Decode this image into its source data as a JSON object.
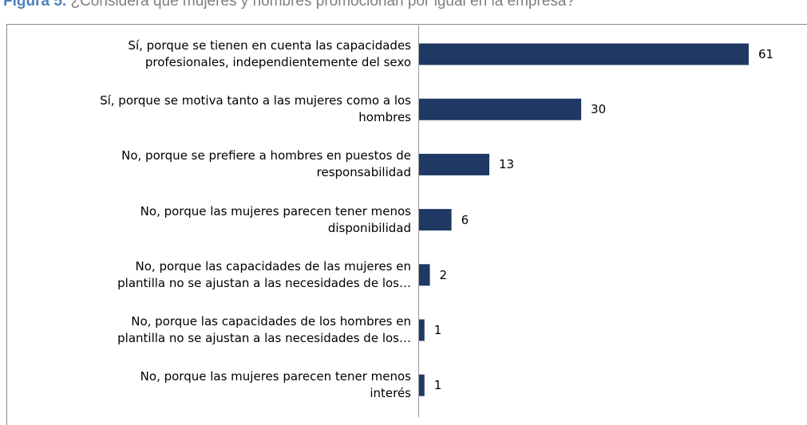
{
  "chart_data": {
    "type": "hbar",
    "figure_label": "Figura 5.",
    "title": "¿Considera que mujeres y hombres promocionan por igual en la empresa?",
    "categories": [
      "Sí, porque se tienen en cuenta las capacidades\nprofesionales, independientemente del sexo",
      "Sí, porque se motiva tanto a las mujeres como a los\nhombres",
      "No, porque se prefiere a hombres en puestos de\nresponsabilidad",
      "No, porque las mujeres parecen tener menos\ndisponibilidad",
      "No, porque las capacidades de las mujeres en\nplantilla no se ajustan a las necesidades de los…",
      "No, porque las capacidades de los hombres en\nplantilla no se ajustan a las necesidades de los…",
      "No, porque las mujeres parecen tener menos\ninterés"
    ],
    "values": [
      61,
      30,
      13,
      6,
      2,
      1,
      1
    ],
    "color": "#1f3864"
  }
}
